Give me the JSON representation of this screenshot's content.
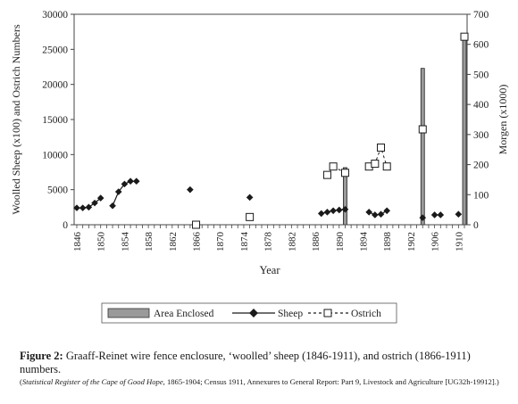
{
  "chart_data": {
    "type": "bar",
    "ylabel": "Woolled Sheep (x100) and Ostrich Numbers",
    "y2label": "Morgen (x1000)",
    "xlabel": "Year",
    "ylim": [
      0,
      30000
    ],
    "y2lim": [
      0,
      700
    ],
    "xlim": [
      1846,
      1911
    ],
    "y_ticks": [
      "0",
      "5000",
      "10000",
      "15000",
      "20000",
      "25000",
      "30000"
    ],
    "y2_ticks": [
      "0",
      "100",
      "200",
      "300",
      "400",
      "500",
      "600",
      "700"
    ],
    "x_ticks": [
      "1846",
      "1850",
      "1854",
      "1858",
      "1862",
      "1866",
      "1870",
      "1874",
      "1878",
      "1882",
      "1886",
      "1890",
      "1894",
      "1898",
      "1902",
      "1906",
      "1910"
    ],
    "grid": false,
    "legend_position": "bottom",
    "series": [
      {
        "name": "Area Enclosed",
        "type": "bar",
        "axis": "right",
        "color": "#9a9a9a",
        "x": [
          1891,
          1904,
          1911
        ],
        "values": [
          190,
          520,
          630
        ]
      },
      {
        "name": "Sheep",
        "type": "line",
        "axis": "left",
        "marker": "diamond",
        "color": "#1a1a1a",
        "segments": [
          [
            [
              1846,
              2400
            ],
            [
              1847,
              2400
            ],
            [
              1848,
              2500
            ],
            [
              1849,
              3100
            ],
            [
              1850,
              3800
            ]
          ],
          [
            [
              1852,
              2700
            ],
            [
              1853,
              4700
            ],
            [
              1854,
              5800
            ],
            [
              1855,
              6200
            ],
            [
              1856,
              6200
            ]
          ],
          [
            [
              1887,
              1600
            ],
            [
              1888,
              1800
            ],
            [
              1889,
              2000
            ],
            [
              1890,
              2100
            ],
            [
              1891,
              2200
            ]
          ],
          [
            [
              1895,
              1800
            ],
            [
              1896,
              1400
            ],
            [
              1897,
              1500
            ],
            [
              1898,
              2000
            ]
          ],
          [
            [
              1906,
              1400
            ],
            [
              1907,
              1400
            ]
          ]
        ],
        "points": [
          [
            1865,
            5000
          ],
          [
            1875,
            3900
          ],
          [
            1904,
            1000
          ],
          [
            1910,
            1500
          ]
        ]
      },
      {
        "name": "Ostrich",
        "type": "line",
        "axis": "left",
        "marker": "square",
        "line_style": "dashed",
        "color": "#1a1a1a",
        "segments": [
          [
            [
              1888,
              7100
            ],
            [
              1889,
              8300
            ],
            [
              1891,
              7400
            ]
          ],
          [
            [
              1895,
              8300
            ],
            [
              1896,
              8700
            ],
            [
              1897,
              11000
            ],
            [
              1898,
              8300
            ]
          ]
        ],
        "points": [
          [
            1866,
            0
          ],
          [
            1875,
            1100
          ],
          [
            1904,
            13600
          ],
          [
            1911,
            26800
          ]
        ]
      }
    ]
  },
  "caption": {
    "label": "Figure 2:",
    "text": "Graaff-Reinet wire fence enclosure, ‘woolled’ sheep (1846-1911), and ostrich (1866-1911) numbers.",
    "source_open": "(",
    "source_title": "Statistical Register of the Cape of Good Hope",
    "source_rest": ", 1865-1904; Census 1911, Annexures to General Report: Part 9, Livestock and Agriculture [UG32h-19912].)"
  }
}
